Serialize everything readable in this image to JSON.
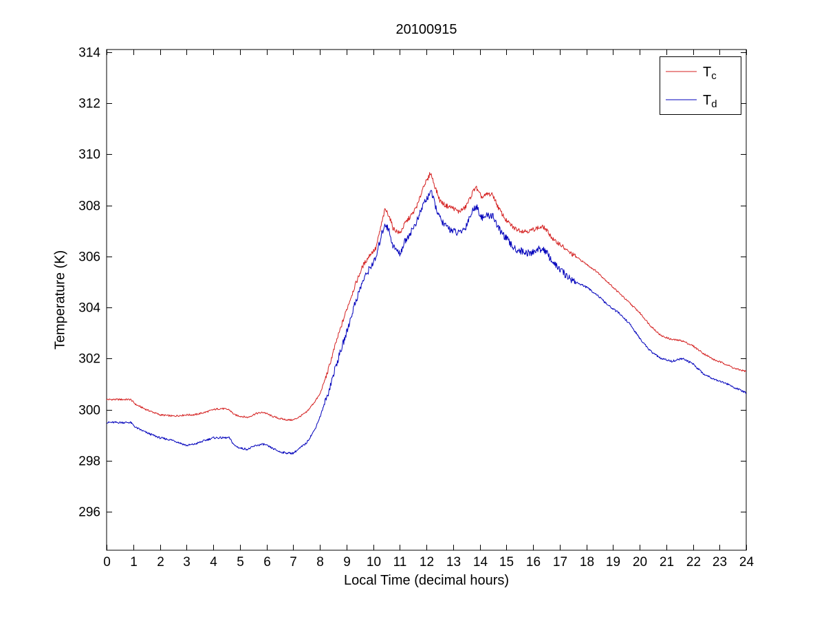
{
  "chart_data": {
    "type": "line",
    "title": "20100915",
    "xlabel": "Local Time (decimal hours)",
    "ylabel": "Temperature (K)",
    "xlim": [
      0,
      24
    ],
    "ylim": [
      294.5,
      314.1
    ],
    "x_ticks": [
      0,
      1,
      2,
      3,
      4,
      5,
      6,
      7,
      8,
      9,
      10,
      11,
      12,
      13,
      14,
      15,
      16,
      17,
      18,
      19,
      20,
      21,
      22,
      23,
      24
    ],
    "y_ticks": [
      296,
      298,
      300,
      302,
      304,
      306,
      308,
      310,
      312,
      314
    ],
    "grid": false,
    "legend_position": "top-right",
    "axis_color": "#000000",
    "background_color": "#ffffff",
    "series": [
      {
        "name": "T_c",
        "legend_main": "T",
        "legend_sub": "c",
        "color": "#d42020",
        "noise_day": 0.09,
        "noise_night": 0.035,
        "keypoints": [
          [
            0,
            300.4
          ],
          [
            0.5,
            300.4
          ],
          [
            0.9,
            300.4
          ],
          [
            1.1,
            300.2
          ],
          [
            1.5,
            300.0
          ],
          [
            2,
            299.8
          ],
          [
            2.5,
            299.75
          ],
          [
            3,
            299.8
          ],
          [
            3.3,
            299.8
          ],
          [
            3.7,
            299.9
          ],
          [
            4,
            300.0
          ],
          [
            4.3,
            300.05
          ],
          [
            4.6,
            300.0
          ],
          [
            4.8,
            299.8
          ],
          [
            5,
            299.75
          ],
          [
            5.3,
            299.7
          ],
          [
            5.6,
            299.85
          ],
          [
            5.9,
            299.9
          ],
          [
            6.2,
            299.75
          ],
          [
            6.5,
            299.65
          ],
          [
            6.8,
            299.6
          ],
          [
            7,
            299.6
          ],
          [
            7.2,
            299.7
          ],
          [
            7.5,
            299.9
          ],
          [
            7.8,
            300.3
          ],
          [
            8,
            300.6
          ],
          [
            8.3,
            301.5
          ],
          [
            8.6,
            302.6
          ],
          [
            9,
            303.9
          ],
          [
            9.3,
            304.8
          ],
          [
            9.6,
            305.6
          ],
          [
            9.9,
            306.1
          ],
          [
            10.1,
            306.3
          ],
          [
            10.3,
            307.2
          ],
          [
            10.45,
            307.85
          ],
          [
            10.6,
            307.6
          ],
          [
            10.75,
            307.1
          ],
          [
            11,
            306.9
          ],
          [
            11.2,
            307.3
          ],
          [
            11.5,
            307.7
          ],
          [
            11.7,
            308.1
          ],
          [
            11.9,
            308.8
          ],
          [
            12.05,
            309.0
          ],
          [
            12.15,
            309.3
          ],
          [
            12.3,
            308.8
          ],
          [
            12.5,
            308.2
          ],
          [
            12.7,
            308.0
          ],
          [
            13,
            307.9
          ],
          [
            13.2,
            307.75
          ],
          [
            13.45,
            307.9
          ],
          [
            13.6,
            308.2
          ],
          [
            13.85,
            308.75
          ],
          [
            13.95,
            308.5
          ],
          [
            14.1,
            308.3
          ],
          [
            14.3,
            308.45
          ],
          [
            14.5,
            308.4
          ],
          [
            14.7,
            307.9
          ],
          [
            15,
            307.4
          ],
          [
            15.3,
            307.1
          ],
          [
            15.6,
            307.0
          ],
          [
            15.9,
            307.0
          ],
          [
            16.1,
            307.1
          ],
          [
            16.4,
            307.15
          ],
          [
            16.6,
            306.9
          ],
          [
            16.8,
            306.6
          ],
          [
            17,
            306.5
          ],
          [
            17.3,
            306.2
          ],
          [
            17.6,
            306.0
          ],
          [
            18,
            305.7
          ],
          [
            18.4,
            305.4
          ],
          [
            18.8,
            305.0
          ],
          [
            19.2,
            304.6
          ],
          [
            19.6,
            304.2
          ],
          [
            20,
            303.8
          ],
          [
            20.4,
            303.3
          ],
          [
            20.8,
            302.9
          ],
          [
            21.2,
            302.75
          ],
          [
            21.6,
            302.7
          ],
          [
            22,
            302.5
          ],
          [
            22.4,
            302.2
          ],
          [
            22.8,
            301.95
          ],
          [
            23.2,
            301.8
          ],
          [
            23.6,
            301.6
          ],
          [
            24,
            301.5
          ]
        ]
      },
      {
        "name": "T_d",
        "legend_main": "T",
        "legend_sub": "d",
        "color": "#0000bb",
        "noise_day": 0.14,
        "noise_night": 0.04,
        "keypoints": [
          [
            0,
            299.5
          ],
          [
            0.5,
            299.5
          ],
          [
            0.9,
            299.5
          ],
          [
            1.1,
            299.3
          ],
          [
            1.5,
            299.1
          ],
          [
            2,
            298.9
          ],
          [
            2.5,
            298.8
          ],
          [
            3,
            298.6
          ],
          [
            3.3,
            298.65
          ],
          [
            3.7,
            298.8
          ],
          [
            4,
            298.9
          ],
          [
            4.3,
            298.9
          ],
          [
            4.6,
            298.9
          ],
          [
            4.8,
            298.6
          ],
          [
            5,
            298.5
          ],
          [
            5.3,
            298.45
          ],
          [
            5.6,
            298.6
          ],
          [
            5.9,
            298.65
          ],
          [
            6.2,
            298.5
          ],
          [
            6.5,
            298.35
          ],
          [
            6.8,
            298.3
          ],
          [
            7,
            298.3
          ],
          [
            7.2,
            298.45
          ],
          [
            7.5,
            298.7
          ],
          [
            7.8,
            299.2
          ],
          [
            8,
            299.7
          ],
          [
            8.3,
            300.6
          ],
          [
            8.6,
            301.7
          ],
          [
            9,
            303.0
          ],
          [
            9.3,
            304.1
          ],
          [
            9.6,
            305.0
          ],
          [
            9.9,
            305.6
          ],
          [
            10.1,
            305.9
          ],
          [
            10.3,
            306.8
          ],
          [
            10.45,
            307.3
          ],
          [
            10.6,
            307.0
          ],
          [
            10.75,
            306.4
          ],
          [
            11,
            306.1
          ],
          [
            11.2,
            306.6
          ],
          [
            11.5,
            307.1
          ],
          [
            11.7,
            307.5
          ],
          [
            11.9,
            308.1
          ],
          [
            12.05,
            308.3
          ],
          [
            12.15,
            308.6
          ],
          [
            12.3,
            308.1
          ],
          [
            12.5,
            307.5
          ],
          [
            12.7,
            307.2
          ],
          [
            13,
            307.0
          ],
          [
            13.2,
            306.9
          ],
          [
            13.45,
            307.1
          ],
          [
            13.6,
            307.5
          ],
          [
            13.85,
            308.0
          ],
          [
            13.95,
            307.8
          ],
          [
            14.1,
            307.5
          ],
          [
            14.3,
            307.6
          ],
          [
            14.5,
            307.6
          ],
          [
            14.7,
            307.1
          ],
          [
            15,
            306.7
          ],
          [
            15.3,
            306.3
          ],
          [
            15.6,
            306.2
          ],
          [
            15.9,
            306.1
          ],
          [
            16.1,
            306.25
          ],
          [
            16.4,
            306.3
          ],
          [
            16.6,
            306.0
          ],
          [
            16.8,
            305.7
          ],
          [
            17,
            305.5
          ],
          [
            17.3,
            305.2
          ],
          [
            17.6,
            305.0
          ],
          [
            18,
            304.8
          ],
          [
            18.4,
            304.5
          ],
          [
            18.8,
            304.1
          ],
          [
            19.2,
            303.8
          ],
          [
            19.6,
            303.4
          ],
          [
            20,
            302.8
          ],
          [
            20.4,
            302.3
          ],
          [
            20.8,
            302.0
          ],
          [
            21.2,
            301.9
          ],
          [
            21.6,
            302.0
          ],
          [
            22,
            301.8
          ],
          [
            22.4,
            301.4
          ],
          [
            22.8,
            301.2
          ],
          [
            23.2,
            301.05
          ],
          [
            23.6,
            300.85
          ],
          [
            24,
            300.65
          ]
        ]
      }
    ]
  }
}
